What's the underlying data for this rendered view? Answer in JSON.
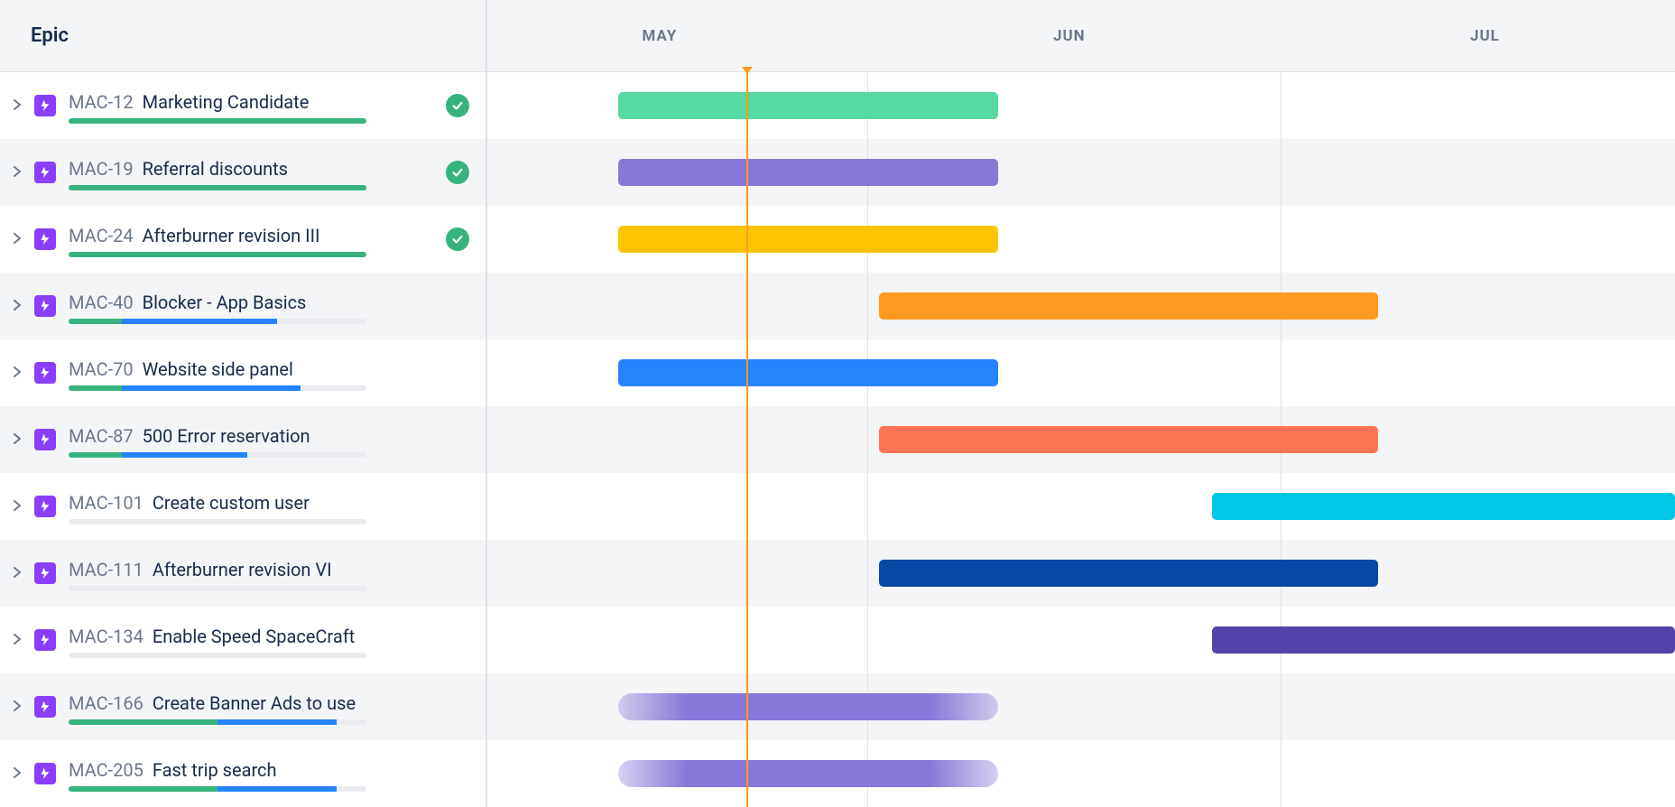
{
  "header": {
    "epic_label": "Epic"
  },
  "timeline": {
    "months": [
      {
        "label": "MAY",
        "position_pct": 14.5
      },
      {
        "label": "JUN",
        "position_pct": 49.0
      },
      {
        "label": "JUL",
        "position_pct": 84.0
      }
    ],
    "dividers_pct": [
      32.0,
      66.8
    ],
    "today_line_pct": 21.8
  },
  "colors": {
    "progress_green": "#36b37e",
    "progress_blue": "#2684ff",
    "progress_track": "#ebecf0",
    "epic_icon_bg": "#8a3ffc",
    "done_badge": "#36b37e",
    "today_orange": "#ff991f"
  },
  "epics": [
    {
      "key": "MAC-12",
      "summary": "Marketing Candidate",
      "done": true,
      "progress": [
        {
          "color": "#36b37e",
          "pct": 100
        }
      ],
      "bar": {
        "start_pct": 11.0,
        "width_pct": 32.0,
        "color": "#57d9a3",
        "gradient": false
      }
    },
    {
      "key": "MAC-19",
      "summary": "Referral discounts",
      "done": true,
      "progress": [
        {
          "color": "#36b37e",
          "pct": 100
        }
      ],
      "bar": {
        "start_pct": 11.0,
        "width_pct": 32.0,
        "color": "#8777d9",
        "gradient": false
      }
    },
    {
      "key": "MAC-24",
      "summary": "Afterburner revision III",
      "done": true,
      "progress": [
        {
          "color": "#36b37e",
          "pct": 100
        }
      ],
      "bar": {
        "start_pct": 11.0,
        "width_pct": 32.0,
        "color": "#ffc400",
        "gradient": false
      }
    },
    {
      "key": "MAC-40",
      "summary": "Blocker - App Basics",
      "done": false,
      "progress": [
        {
          "color": "#36b37e",
          "pct": 18
        },
        {
          "color": "#2684ff",
          "pct": 52
        }
      ],
      "bar": {
        "start_pct": 33.0,
        "width_pct": 42.0,
        "color": "#ff991f",
        "gradient": false
      }
    },
    {
      "key": "MAC-70",
      "summary": "Website side panel",
      "done": false,
      "progress": [
        {
          "color": "#36b37e",
          "pct": 18
        },
        {
          "color": "#2684ff",
          "pct": 60
        }
      ],
      "bar": {
        "start_pct": 11.0,
        "width_pct": 32.0,
        "color": "#2684ff",
        "gradient": false
      }
    },
    {
      "key": "MAC-87",
      "summary": "500 Error reservation",
      "done": false,
      "progress": [
        {
          "color": "#36b37e",
          "pct": 18
        },
        {
          "color": "#2684ff",
          "pct": 42
        }
      ],
      "bar": {
        "start_pct": 33.0,
        "width_pct": 42.0,
        "color": "#ff7452",
        "gradient": false
      }
    },
    {
      "key": "MAC-101",
      "summary": "Create custom user",
      "done": false,
      "progress": [],
      "bar": {
        "start_pct": 61.0,
        "width_pct": 39.0,
        "color": "#00c7e6",
        "gradient": false
      }
    },
    {
      "key": "MAC-111",
      "summary": "Afterburner revision VI",
      "done": false,
      "progress": [],
      "bar": {
        "start_pct": 33.0,
        "width_pct": 42.0,
        "color": "#0747a6",
        "gradient": false
      }
    },
    {
      "key": "MAC-134",
      "summary": "Enable Speed SpaceCraft",
      "done": false,
      "progress": [],
      "bar": {
        "start_pct": 61.0,
        "width_pct": 39.0,
        "color": "#5243aa",
        "gradient": false
      }
    },
    {
      "key": "MAC-166",
      "summary": "Create Banner Ads to use",
      "done": false,
      "progress": [
        {
          "color": "#36b37e",
          "pct": 50
        },
        {
          "color": "#2684ff",
          "pct": 40
        }
      ],
      "bar": {
        "start_pct": 11.0,
        "width_pct": 32.0,
        "color": "#8777d9",
        "gradient": true
      }
    },
    {
      "key": "MAC-205",
      "summary": "Fast trip search",
      "done": false,
      "progress": [
        {
          "color": "#36b37e",
          "pct": 50
        },
        {
          "color": "#2684ff",
          "pct": 40
        }
      ],
      "bar": {
        "start_pct": 11.0,
        "width_pct": 32.0,
        "color": "#8777d9",
        "gradient": true
      }
    }
  ]
}
